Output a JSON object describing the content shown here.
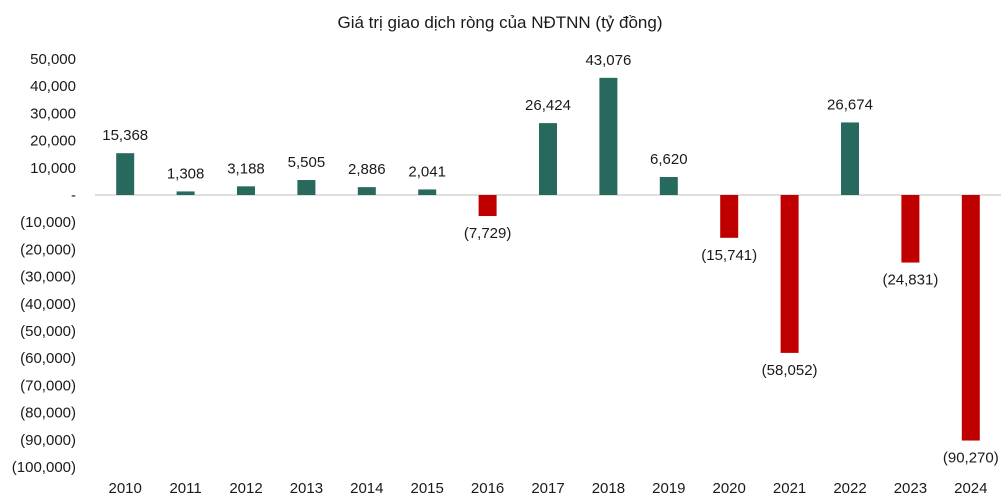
{
  "chart_data": {
    "type": "bar",
    "title": "Giá trị giao dịch ròng của NĐTNN (tỷ đồng)",
    "xlabel": "",
    "ylabel": "",
    "ylim": [
      -100000,
      50000
    ],
    "grid": false,
    "legend": "none",
    "categories": [
      "2010",
      "2011",
      "2012",
      "2013",
      "2014",
      "2015",
      "2016",
      "2017",
      "2018",
      "2019",
      "2020",
      "2021",
      "2022",
      "2023",
      "2024"
    ],
    "values": [
      15368,
      1308,
      3188,
      5505,
      2886,
      2041,
      -7729,
      26424,
      43076,
      6620,
      -15741,
      -58052,
      26674,
      -24831,
      -90270
    ],
    "data_labels": [
      "15,368",
      "1,308",
      "3,188",
      "5,505",
      "2,886",
      "2,041",
      "(7,729)",
      "26,424",
      "43,076",
      "6,620",
      "(15,741)",
      "(58,052)",
      "26,674",
      "(24,831)",
      "(90,270)"
    ],
    "y_ticks": [
      {
        "value": 50000,
        "label": "50,000"
      },
      {
        "value": 40000,
        "label": "40,000"
      },
      {
        "value": 30000,
        "label": "30,000"
      },
      {
        "value": 20000,
        "label": "20,000"
      },
      {
        "value": 10000,
        "label": "10,000"
      },
      {
        "value": 0,
        "label": "-"
      },
      {
        "value": -10000,
        "label": "(10,000)"
      },
      {
        "value": -20000,
        "label": "(20,000)"
      },
      {
        "value": -30000,
        "label": "(30,000)"
      },
      {
        "value": -40000,
        "label": "(40,000)"
      },
      {
        "value": -50000,
        "label": "(50,000)"
      },
      {
        "value": -60000,
        "label": "(60,000)"
      },
      {
        "value": -70000,
        "label": "(70,000)"
      },
      {
        "value": -80000,
        "label": "(80,000)"
      },
      {
        "value": -90000,
        "label": "(90,000)"
      },
      {
        "value": -100000,
        "label": "(100,000)"
      }
    ],
    "colors": {
      "positive": "#27695d",
      "negative": "#c00000",
      "axis": "#bfbfbf",
      "text": "#1a1a1a"
    }
  }
}
